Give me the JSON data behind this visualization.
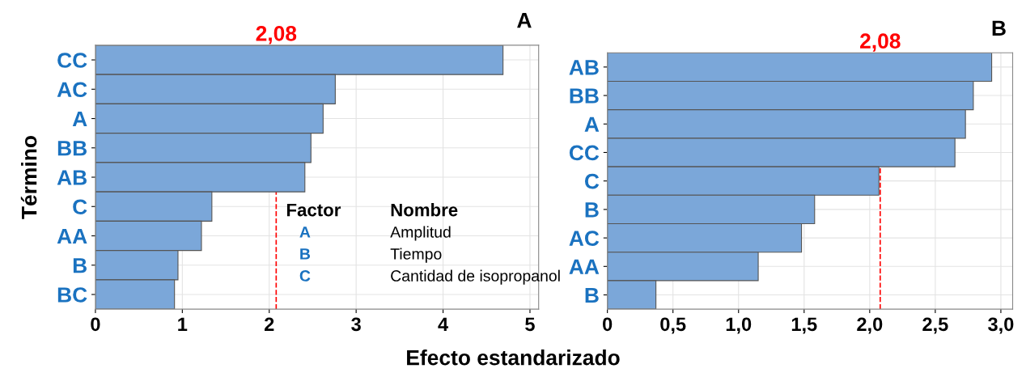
{
  "chart_data": [
    {
      "type": "bar",
      "orientation": "horizontal",
      "title": "A",
      "xlabel": "Efecto estandarizado",
      "ylabel": "Término",
      "categories": [
        "CC",
        "AC",
        "A",
        "BB",
        "AB",
        "C",
        "AA",
        "B",
        "BC"
      ],
      "values": [
        4.69,
        2.76,
        2.62,
        2.48,
        2.41,
        1.34,
        1.22,
        0.95,
        0.91
      ],
      "color": "#7ba7d9",
      "xlim": [
        0,
        5.1
      ],
      "xticks": [
        0,
        1,
        2,
        3,
        4,
        5
      ],
      "grid": true,
      "ref_lines": [
        {
          "axis": "x",
          "value": 2.08,
          "label": "2,08",
          "color": "#ff0000",
          "line_style": "dashed"
        }
      ],
      "annotations": [
        "Factor",
        "Nombre",
        "A",
        "Amplitud",
        "B",
        "Tiempo",
        "C",
        "Cantidad de isopropanol"
      ]
    },
    {
      "type": "bar",
      "orientation": "horizontal",
      "title": "B",
      "categories": [
        "AB",
        "BB",
        "A",
        "CC",
        "C",
        "B",
        "AC",
        "AA",
        "B"
      ],
      "values": [
        2.93,
        2.79,
        2.73,
        2.65,
        2.07,
        1.58,
        1.48,
        1.15,
        0.37
      ],
      "color": "#7ba7d9",
      "xlim": [
        0,
        3.09
      ],
      "xticks": [
        {
          "value": 0,
          "label": "0"
        },
        {
          "value": 0.5,
          "label": "0,5"
        },
        {
          "value": 1.0,
          "label": "1,0"
        },
        {
          "value": 1.5,
          "label": "1,5"
        },
        {
          "value": 2.0,
          "label": "2,0"
        },
        {
          "value": 2.5,
          "label": "2,5"
        },
        {
          "value": 3.0,
          "label": "3,0"
        }
      ],
      "grid": true,
      "ref_lines": [
        {
          "axis": "x",
          "value": 2.08,
          "label": "2,08",
          "color": "#ff0000",
          "line_style": "dashed"
        }
      ]
    }
  ]
}
